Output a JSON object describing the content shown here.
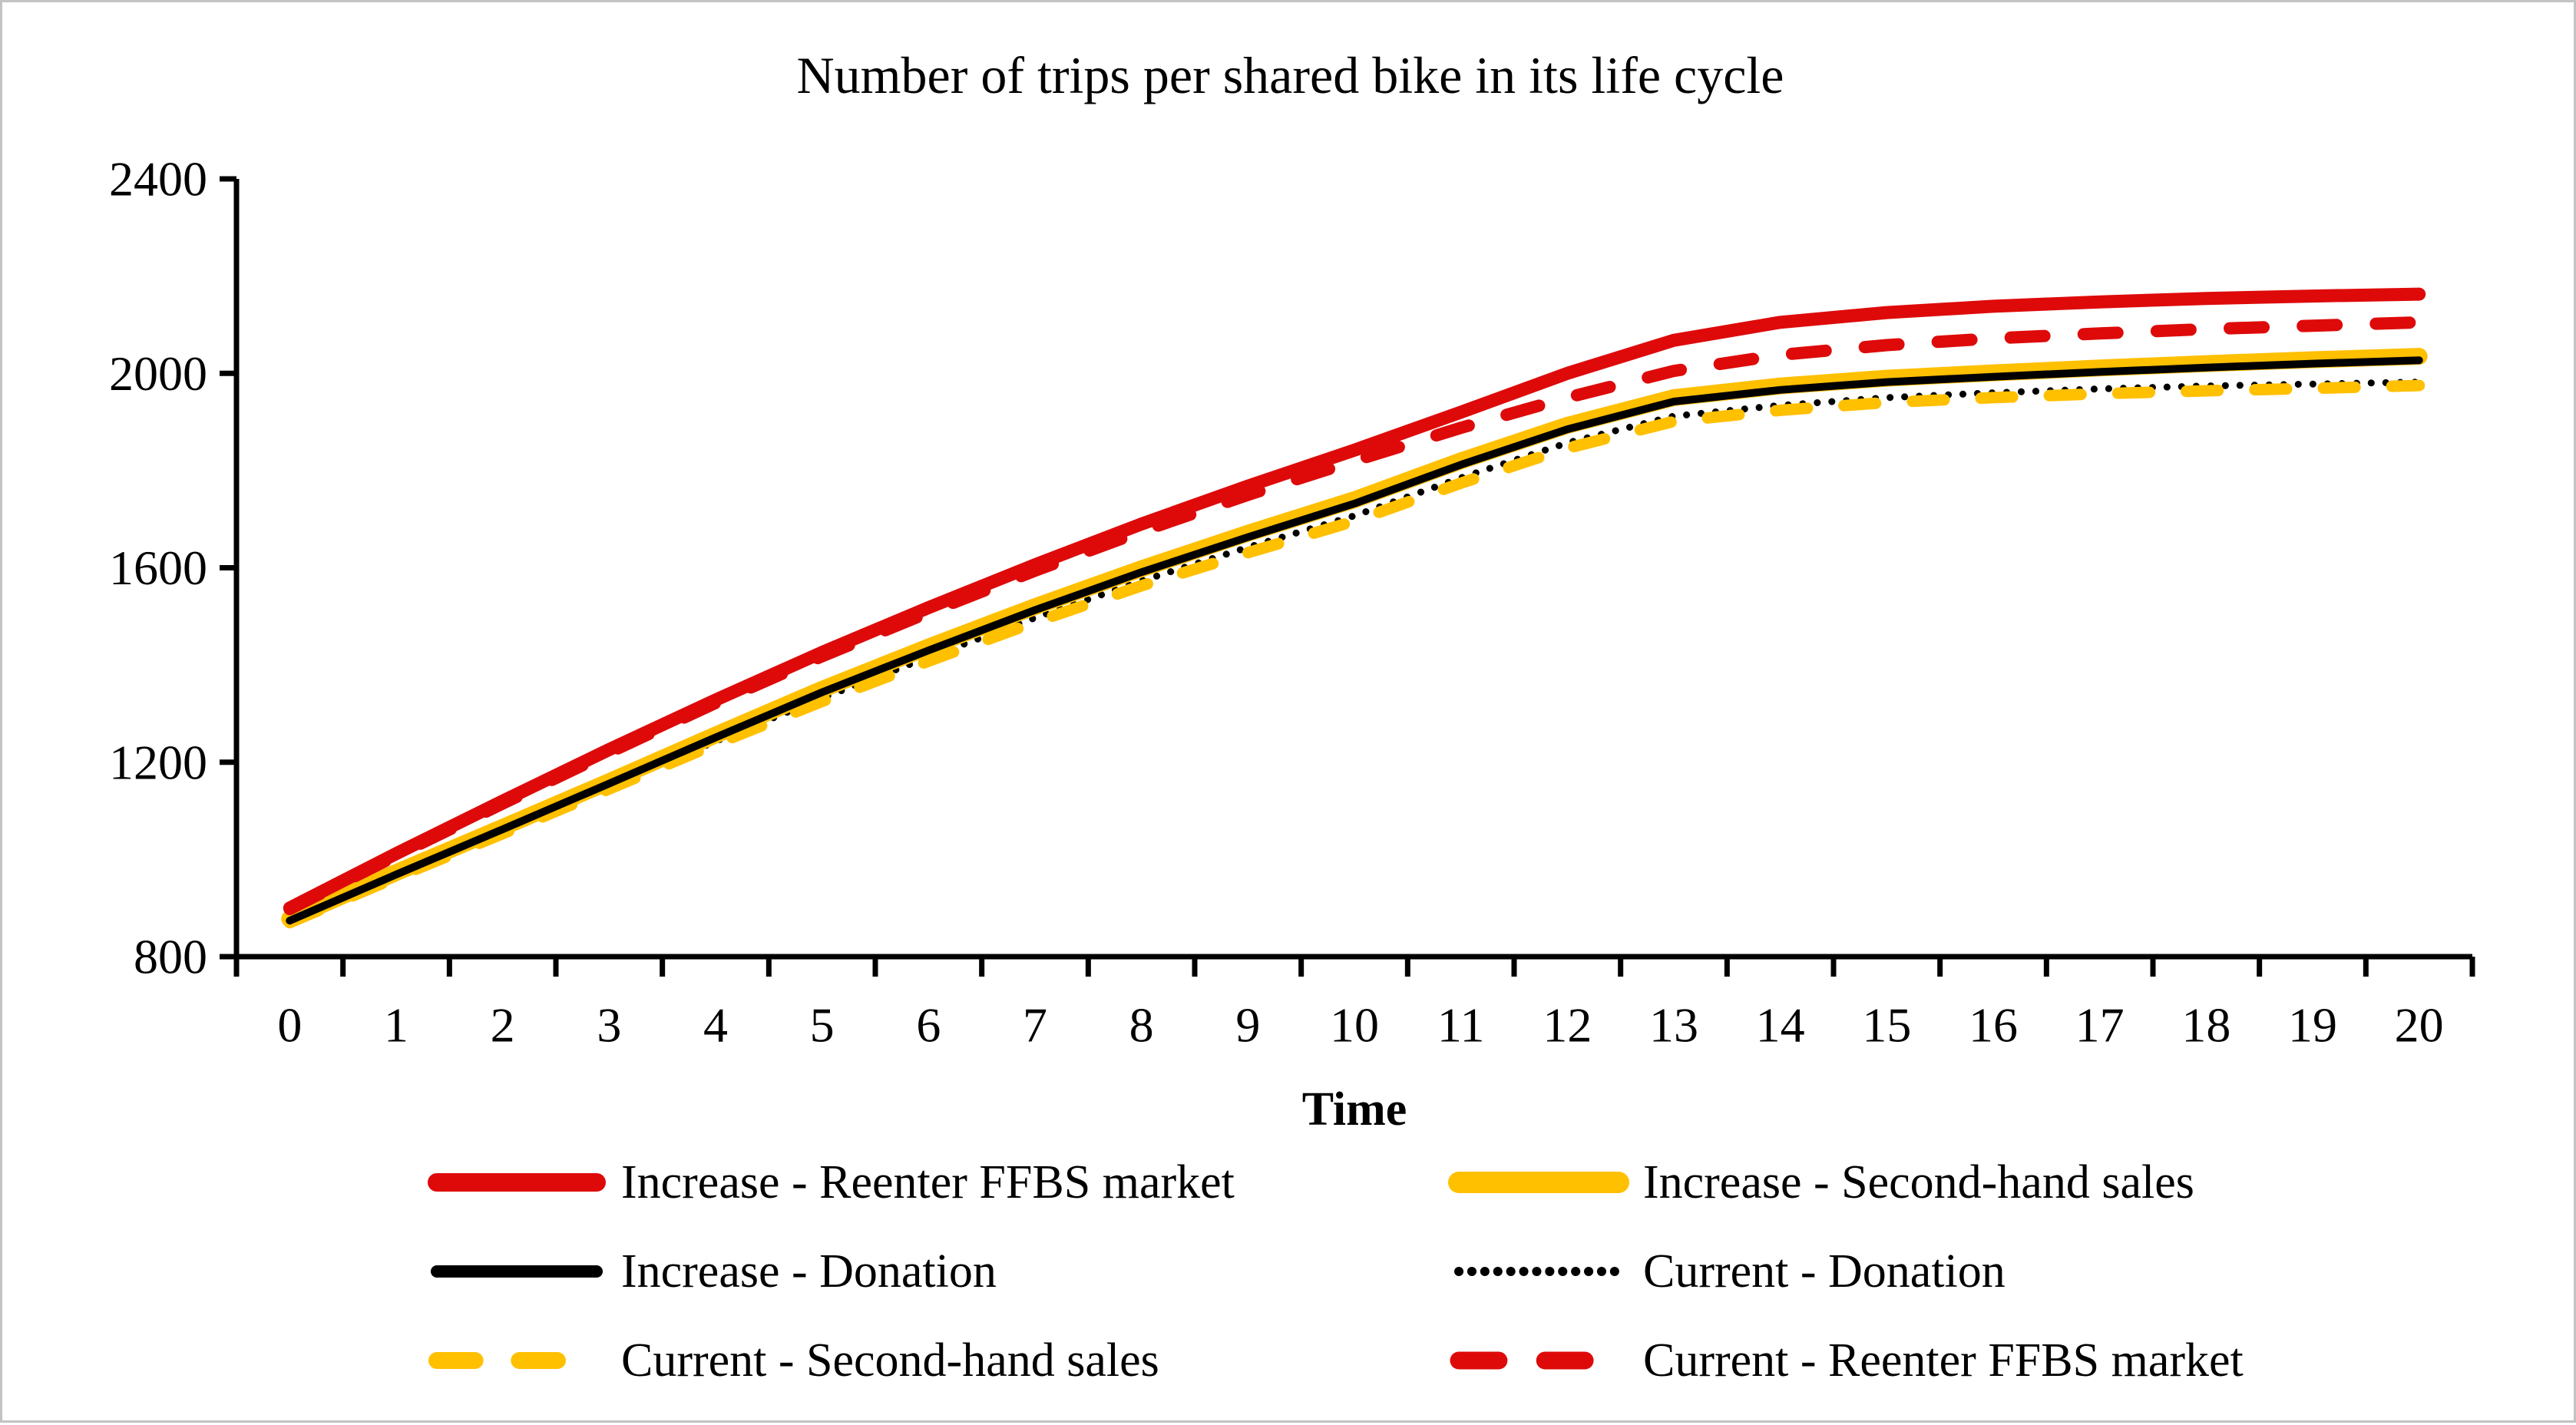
{
  "frame": {
    "background_color": "#ffffff",
    "border_color": "#c3c3c3"
  },
  "chart_data": {
    "type": "line",
    "title": "Number of trips per shared bike in its life cycle",
    "xlabel": "Time",
    "ylabel": "",
    "x": [
      0,
      1,
      2,
      3,
      4,
      5,
      6,
      7,
      8,
      9,
      10,
      11,
      12,
      13,
      14,
      15,
      16,
      17,
      18,
      19,
      20
    ],
    "ylim": [
      800,
      2400
    ],
    "yticks": [
      800,
      1200,
      1600,
      2000,
      2400
    ],
    "grid": false,
    "legend_position": "bottom",
    "legend_columns": 2,
    "axis_color": "#000000",
    "series": [
      {
        "name": "Increase - Reenter FFBS market",
        "color": "#de0a0a",
        "line_style": "solid",
        "line_width": 17,
        "values": [
          900,
          1012,
          1120,
          1226,
          1328,
          1426,
          1518,
          1606,
          1690,
          1768,
          1842,
          1920,
          2000,
          2068,
          2105,
          2125,
          2138,
          2147,
          2154,
          2159,
          2163
        ]
      },
      {
        "name": "Increase - Second-hand sales",
        "color": "#ffc000",
        "line_style": "solid",
        "line_width": 22,
        "values": [
          878,
          973,
          1066,
          1160,
          1256,
          1350,
          1437,
          1520,
          1598,
          1671,
          1740,
          1820,
          1893,
          1950,
          1974,
          1990,
          2001,
          2011,
          2020,
          2028,
          2035
        ]
      },
      {
        "name": "Increase - Donation",
        "color": "#000000",
        "line_style": "solid",
        "line_width": 10,
        "values": [
          874,
          969,
          1062,
          1156,
          1251,
          1344,
          1430,
          1513,
          1591,
          1663,
          1732,
          1812,
          1885,
          1942,
          1966,
          1982,
          1993,
          2003,
          2012,
          2020,
          2027
        ]
      },
      {
        "name": "Current - Donation",
        "color": "#000000",
        "line_style": "dotted",
        "line_width": 9,
        "values": [
          872,
          966,
          1057,
          1150,
          1243,
          1332,
          1416,
          1497,
          1573,
          1642,
          1707,
          1785,
          1857,
          1912,
          1934,
          1950,
          1960,
          1968,
          1974,
          1978,
          1982
        ]
      },
      {
        "name": "Current - Second-hand sales",
        "color": "#ffc000",
        "line_style": "dashed",
        "line_width": 15,
        "values": [
          870,
          963,
          1053,
          1145,
          1237,
          1325,
          1408,
          1488,
          1563,
          1631,
          1696,
          1774,
          1846,
          1901,
          1924,
          1940,
          1950,
          1958,
          1964,
          1969,
          1975
        ]
      },
      {
        "name": "Current - Reenter FFBS market",
        "color": "#de0a0a",
        "line_style": "dashed",
        "line_width": 16,
        "values": [
          898,
          1008,
          1115,
          1220,
          1322,
          1418,
          1508,
          1594,
          1675,
          1750,
          1820,
          1888,
          1950,
          2005,
          2038,
          2058,
          2072,
          2082,
          2091,
          2098,
          2105
        ]
      }
    ],
    "draw_order": [
      3,
      4,
      1,
      2,
      5,
      0
    ]
  }
}
